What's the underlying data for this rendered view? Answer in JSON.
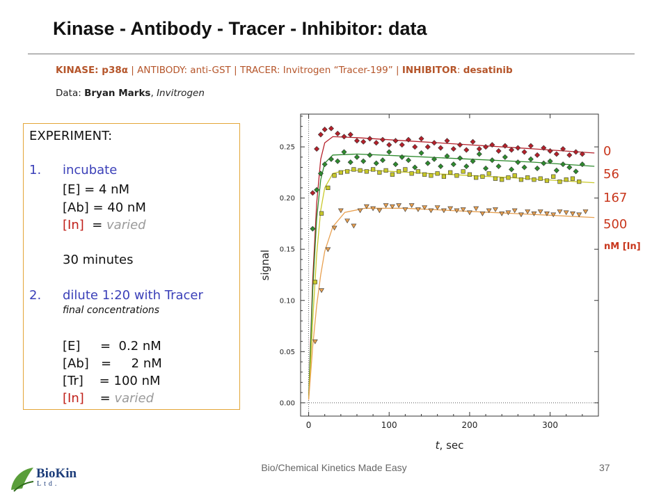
{
  "slide": {
    "title": "Kinase - Antibody - Tracer - Inhibitor: data",
    "subtitle": {
      "kinase_key": "KINASE: p38α",
      "sep1": " | ANTIBODY: anti-GST | TRACER: Invitrogen “Tracer-199” | ",
      "inhibitor_key": "INHIBITOR",
      "colon": ": ",
      "inhibitor_value": "desatinib"
    },
    "credit": {
      "prefix": "Data: ",
      "name": "Bryan Marks",
      "sep": ", ",
      "org": "Invitrogen"
    },
    "footer": "Bio/Chemical Kinetics Made Easy",
    "page_number": "37",
    "logo": {
      "name": "BioKin",
      "sub": "Ltd."
    }
  },
  "experiment": {
    "heading": "EXPERIMENT:",
    "step1_num": "1.",
    "step1_label": "incubate",
    "step1_lines": [
      "[E]   =   4 nM",
      "[Ab] = 40 nM"
    ],
    "step1_in_label": "[In]",
    "step1_in_eq": "  = ",
    "varied": "varied",
    "duration": "30 minutes",
    "step2_num": "2.",
    "step2_label": "dilute 1:20 with Tracer",
    "step2_note": "final concentrations",
    "step2_lines": [
      "[E]     =  0.2 nM",
      "[Ab]   =     2 nM",
      "[Tr]    = 100 nM"
    ],
    "step2_in_label": "[In]",
    "step2_in_eq": "    = "
  },
  "chart_data": {
    "type": "scatter",
    "xlabel": "t, sec",
    "ylabel": "signal",
    "xlim": [
      -10,
      360
    ],
    "ylim": [
      -0.013,
      0.282
    ],
    "xticks": [
      0,
      100,
      200,
      300
    ],
    "yticks": [
      0.0,
      0.05,
      0.1,
      0.15,
      0.2,
      0.25
    ],
    "ytick_labels": [
      "0.00",
      "0.05",
      "0.10",
      "0.15",
      "0.20",
      "0.25"
    ],
    "unit_label": "nM [In]",
    "series": [
      {
        "name": "0",
        "color": "#b5202a",
        "marker": "diamond",
        "x": [
          5,
          10,
          15,
          20,
          28,
          36,
          44,
          52,
          60,
          68,
          76,
          84,
          92,
          100,
          108,
          116,
          124,
          132,
          140,
          148,
          156,
          164,
          172,
          180,
          188,
          196,
          204,
          212,
          220,
          228,
          236,
          244,
          252,
          260,
          268,
          276,
          284,
          292,
          300,
          308,
          316,
          324,
          332,
          340
        ],
        "y": [
          0.205,
          0.248,
          0.262,
          0.267,
          0.268,
          0.263,
          0.26,
          0.262,
          0.256,
          0.255,
          0.258,
          0.254,
          0.257,
          0.252,
          0.256,
          0.252,
          0.257,
          0.25,
          0.258,
          0.25,
          0.254,
          0.249,
          0.256,
          0.248,
          0.252,
          0.247,
          0.255,
          0.248,
          0.25,
          0.252,
          0.246,
          0.251,
          0.247,
          0.249,
          0.245,
          0.251,
          0.242,
          0.249,
          0.246,
          0.243,
          0.248,
          0.242,
          0.245,
          0.243
        ],
        "fit": [
          [
            0,
            0.005
          ],
          [
            5,
            0.12
          ],
          [
            10,
            0.195
          ],
          [
            15,
            0.238
          ],
          [
            20,
            0.254
          ],
          [
            30,
            0.26
          ],
          [
            60,
            0.259
          ],
          [
            120,
            0.256
          ],
          [
            200,
            0.252
          ],
          [
            280,
            0.248
          ],
          [
            355,
            0.244
          ]
        ]
      },
      {
        "name": "56",
        "color": "#2e8b2e",
        "marker": "diamond",
        "x": [
          5,
          10,
          15,
          20,
          28,
          36,
          44,
          52,
          60,
          68,
          76,
          84,
          92,
          100,
          108,
          116,
          124,
          132,
          140,
          148,
          156,
          164,
          172,
          180,
          188,
          196,
          204,
          212,
          220,
          228,
          236,
          244,
          252,
          260,
          268,
          276,
          284,
          292,
          300,
          308,
          316,
          324,
          332,
          340
        ],
        "y": [
          0.17,
          0.208,
          0.224,
          0.233,
          0.238,
          0.236,
          0.245,
          0.235,
          0.24,
          0.236,
          0.242,
          0.234,
          0.237,
          0.245,
          0.233,
          0.24,
          0.237,
          0.23,
          0.244,
          0.234,
          0.238,
          0.231,
          0.241,
          0.233,
          0.239,
          0.231,
          0.236,
          0.243,
          0.229,
          0.237,
          0.231,
          0.24,
          0.228,
          0.235,
          0.23,
          0.238,
          0.229,
          0.234,
          0.236,
          0.227,
          0.233,
          0.23,
          0.226,
          0.233
        ],
        "fit": [
          [
            0,
            0.005
          ],
          [
            5,
            0.11
          ],
          [
            10,
            0.18
          ],
          [
            15,
            0.218
          ],
          [
            20,
            0.234
          ],
          [
            30,
            0.242
          ],
          [
            60,
            0.243
          ],
          [
            120,
            0.241
          ],
          [
            200,
            0.238
          ],
          [
            280,
            0.235
          ],
          [
            355,
            0.231
          ]
        ]
      },
      {
        "name": "167",
        "color": "#c8c82a",
        "marker": "square",
        "x": [
          8,
          16,
          24,
          32,
          40,
          48,
          56,
          64,
          72,
          80,
          88,
          96,
          104,
          112,
          120,
          128,
          136,
          144,
          152,
          160,
          168,
          176,
          184,
          192,
          200,
          208,
          216,
          224,
          232,
          240,
          248,
          256,
          264,
          272,
          280,
          288,
          296,
          304,
          312,
          320,
          328,
          336
        ],
        "y": [
          0.118,
          0.185,
          0.21,
          0.222,
          0.225,
          0.226,
          0.228,
          0.227,
          0.226,
          0.228,
          0.225,
          0.227,
          0.223,
          0.226,
          0.228,
          0.224,
          0.226,
          0.223,
          0.222,
          0.224,
          0.221,
          0.225,
          0.222,
          0.226,
          0.223,
          0.22,
          0.221,
          0.224,
          0.219,
          0.218,
          0.22,
          0.222,
          0.218,
          0.22,
          0.218,
          0.219,
          0.217,
          0.221,
          0.216,
          0.218,
          0.219,
          0.216
        ],
        "fit": [
          [
            0,
            0.004
          ],
          [
            5,
            0.08
          ],
          [
            10,
            0.145
          ],
          [
            15,
            0.188
          ],
          [
            20,
            0.21
          ],
          [
            30,
            0.224
          ],
          [
            45,
            0.227
          ],
          [
            80,
            0.227
          ],
          [
            150,
            0.224
          ],
          [
            250,
            0.22
          ],
          [
            355,
            0.215
          ]
        ]
      },
      {
        "name": "500",
        "color": "#e8a050",
        "marker": "triangle",
        "x": [
          8,
          16,
          24,
          32,
          40,
          48,
          56,
          64,
          72,
          80,
          88,
          96,
          104,
          112,
          120,
          128,
          136,
          144,
          152,
          160,
          168,
          176,
          184,
          192,
          200,
          208,
          216,
          224,
          232,
          240,
          248,
          256,
          264,
          272,
          280,
          288,
          296,
          304,
          312,
          320,
          328,
          336,
          344
        ],
        "y": [
          0.06,
          0.11,
          0.15,
          0.171,
          0.188,
          0.178,
          0.173,
          0.188,
          0.192,
          0.19,
          0.188,
          0.193,
          0.192,
          0.193,
          0.189,
          0.193,
          0.189,
          0.191,
          0.188,
          0.191,
          0.188,
          0.19,
          0.188,
          0.189,
          0.186,
          0.19,
          0.185,
          0.188,
          0.189,
          0.185,
          0.186,
          0.188,
          0.184,
          0.187,
          0.185,
          0.187,
          0.185,
          0.184,
          0.187,
          0.186,
          0.185,
          0.184,
          0.187
        ],
        "fit": [
          [
            0,
            0.003
          ],
          [
            5,
            0.055
          ],
          [
            10,
            0.095
          ],
          [
            15,
            0.125
          ],
          [
            20,
            0.148
          ],
          [
            30,
            0.172
          ],
          [
            45,
            0.186
          ],
          [
            70,
            0.19
          ],
          [
            120,
            0.19
          ],
          [
            200,
            0.187
          ],
          [
            280,
            0.184
          ],
          [
            355,
            0.181
          ]
        ]
      }
    ]
  }
}
